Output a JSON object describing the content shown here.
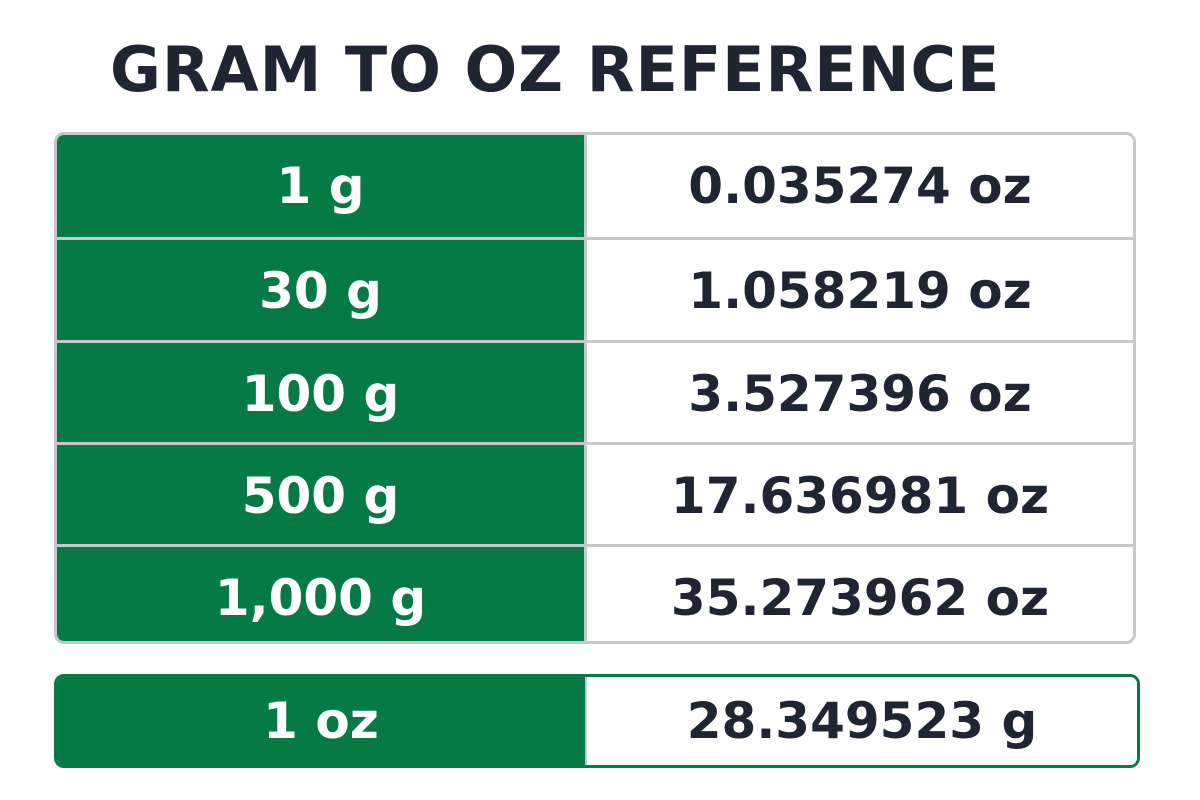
{
  "title": "GRAM TO OZ REFERENCE",
  "colors": {
    "accent_green": "#057a45",
    "text_dark": "#1f2533",
    "border_gray": "#c6c8cc"
  },
  "chart_data": {
    "type": "table",
    "title": "GRAM TO OZ REFERENCE",
    "rows": [
      {
        "grams": "1 g",
        "ounces": "0.035274 oz"
      },
      {
        "grams": "30 g",
        "ounces": "1.058219 oz"
      },
      {
        "grams": "100 g",
        "ounces": "3.527396 oz"
      },
      {
        "grams": "500 g",
        "ounces": "17.636981 oz"
      },
      {
        "grams": "1,000 g",
        "ounces": "35.273962 oz"
      }
    ],
    "reverse": {
      "ounces": "1 oz",
      "grams": "28.349523 g"
    }
  }
}
